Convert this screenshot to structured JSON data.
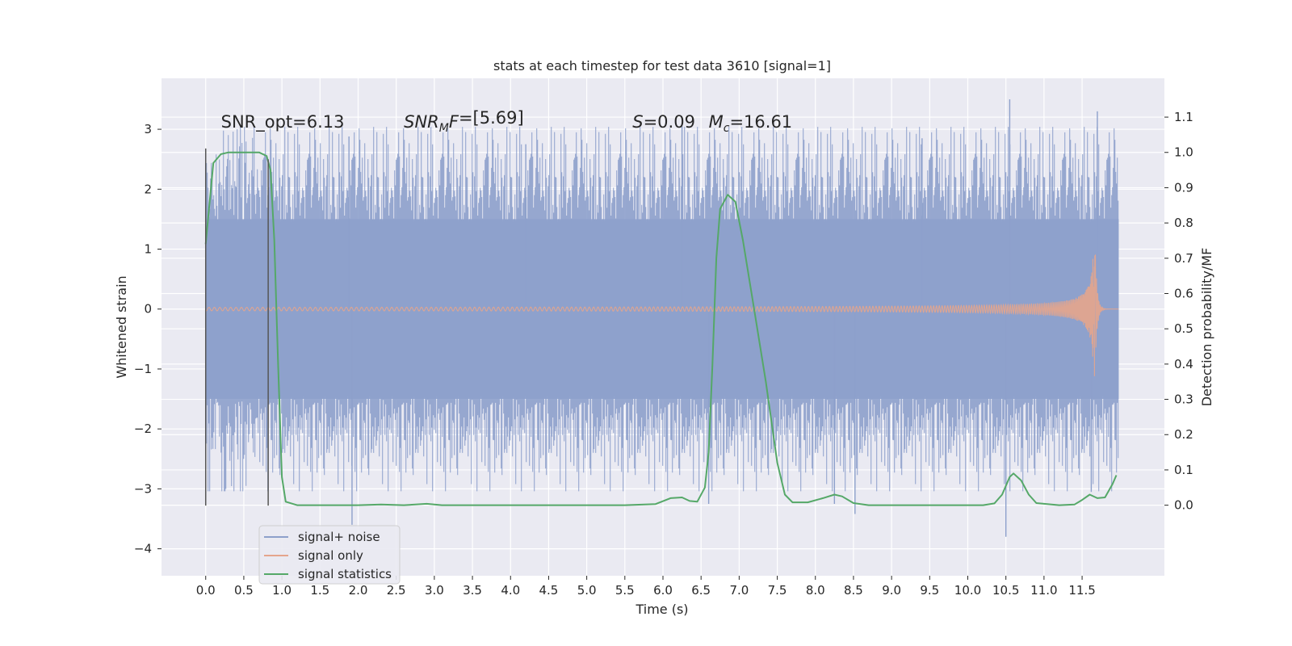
{
  "figure": {
    "title": "stats at each timestep for test data 3610 [signal=1]",
    "background": "#ffffff",
    "plot_background": "#eaeaf2",
    "grid_color": "#ffffff"
  },
  "chart_data": {
    "type": "line",
    "title": "stats at each timestep for test data 3610 [signal=1]",
    "xlabel": "Time (s)",
    "ylabel_left": "Whitened strain",
    "ylabel_right": "Detection probability/MF",
    "xlim": [
      -0.58,
      12.58
    ],
    "ylim_left": [
      -4.45,
      3.85
    ],
    "ylim_right": [
      -0.2,
      1.21
    ],
    "x_ticks": [
      0.0,
      0.5,
      1.0,
      1.5,
      2.0,
      2.5,
      3.0,
      3.5,
      4.0,
      4.5,
      5.0,
      5.5,
      6.0,
      6.5,
      7.0,
      7.5,
      8.0,
      8.5,
      9.0,
      9.5,
      10.0,
      10.5,
      11.0,
      11.5
    ],
    "x_tick_labels": [
      "0.0",
      "0.5",
      "1.0",
      "1.5",
      "2.0",
      "2.5",
      "3.0",
      "3.5",
      "4.0",
      "4.5",
      "5.0",
      "5.5",
      "6.0",
      "6.5",
      "7.0",
      "7.5",
      "8.0",
      "8.5",
      "9.0",
      "9.5",
      "10.0",
      "10.5",
      "11.0",
      "11.5"
    ],
    "y_left_ticks": [
      -4,
      -3,
      -2,
      -1,
      0,
      1,
      2,
      3
    ],
    "y_left_tick_labels": [
      "−4",
      "−3",
      "−2",
      "−1",
      "0",
      "1",
      "2",
      "3"
    ],
    "y_right_ticks": [
      0.0,
      0.1,
      0.2,
      0.3,
      0.4,
      0.5,
      0.6,
      0.7,
      0.8,
      0.9,
      1.0,
      1.1
    ],
    "y_right_tick_labels": [
      "0.0",
      "0.1",
      "0.2",
      "0.3",
      "0.4",
      "0.5",
      "0.6",
      "0.7",
      "0.8",
      "0.9",
      "1.0",
      "1.1"
    ],
    "grid": true,
    "legend_position": "lower-left",
    "legend": [
      {
        "label": "signal+ noise",
        "color": "#8da0cb"
      },
      {
        "label": "signal only",
        "color": "#e5a58c"
      },
      {
        "label": "signal statistics",
        "color": "#55a868"
      }
    ],
    "annotations": [
      {
        "parts": [
          {
            "t": "SNR_opt=6.13",
            "i": false
          }
        ],
        "x": 0.2
      },
      {
        "parts": [
          {
            "t": "SNR",
            "i": true
          },
          {
            "t": "M",
            "i": true,
            "sub": true
          },
          {
            "t": "F",
            "i": true
          },
          {
            "t": "=[5.69]",
            "i": false
          }
        ],
        "x": 2.6
      },
      {
        "parts": [
          {
            "t": "S",
            "i": true
          },
          {
            "t": "=0.09",
            "i": false
          }
        ],
        "x": 5.6
      },
      {
        "parts": [
          {
            "t": "M",
            "i": true
          },
          {
            "t": "c",
            "i": true,
            "sub": true
          },
          {
            "t": "=16.61",
            "i": false
          }
        ],
        "x": 6.6
      }
    ],
    "annotation_y": 3.12,
    "vertical_markers": [
      {
        "x": 0.0,
        "y_top": 2.68,
        "y_bottom": -3.28
      },
      {
        "x": 0.82,
        "y_top": 2.5,
        "y_bottom": -3.28
      }
    ],
    "series": [
      {
        "name": "signal+ noise",
        "axis": "left",
        "style": "noise",
        "color": "#8da0cb",
        "x_range": [
          0.0,
          11.98
        ],
        "band": [
          -1.5,
          1.5
        ],
        "max_excursion": 3.8,
        "peaks": [
          {
            "x": 1.88,
            "y": 2.88
          },
          {
            "x": 1.92,
            "y": -3.6
          },
          {
            "x": 6.25,
            "y": 3.05
          },
          {
            "x": 6.6,
            "y": -3.25
          },
          {
            "x": 8.25,
            "y": -3.25
          },
          {
            "x": 8.52,
            "y": -3.42
          },
          {
            "x": 10.55,
            "y": 3.5
          },
          {
            "x": 10.5,
            "y": -3.8
          },
          {
            "x": 11.7,
            "y": 3.3
          },
          {
            "x": 11.62,
            "y": -3.05
          },
          {
            "x": 4.2,
            "y": 2.75
          },
          {
            "x": 9.4,
            "y": 2.85
          }
        ]
      },
      {
        "name": "signal only",
        "axis": "left",
        "style": "chirp",
        "color": "#e5a58c",
        "x_range": [
          0.0,
          11.98
        ],
        "merger_time": 11.67,
        "peak_amplitude": 1.12,
        "baseline_amplitude": 0.02
      },
      {
        "name": "signal statistics",
        "axis": "right",
        "style": "line",
        "color": "#55a868",
        "points": [
          [
            0.0,
            0.74
          ],
          [
            0.1,
            0.97
          ],
          [
            0.2,
            0.995
          ],
          [
            0.3,
            1.0
          ],
          [
            0.7,
            1.0
          ],
          [
            0.8,
            0.99
          ],
          [
            0.85,
            0.95
          ],
          [
            0.9,
            0.75
          ],
          [
            0.95,
            0.4
          ],
          [
            1.0,
            0.08
          ],
          [
            1.05,
            0.01
          ],
          [
            1.2,
            0.0
          ],
          [
            2.0,
            0.0
          ],
          [
            2.3,
            0.002
          ],
          [
            2.6,
            0.0
          ],
          [
            2.9,
            0.004
          ],
          [
            3.1,
            0.0
          ],
          [
            5.5,
            0.0
          ],
          [
            5.9,
            0.003
          ],
          [
            6.1,
            0.02
          ],
          [
            6.25,
            0.022
          ],
          [
            6.35,
            0.012
          ],
          [
            6.45,
            0.01
          ],
          [
            6.55,
            0.05
          ],
          [
            6.6,
            0.15
          ],
          [
            6.65,
            0.4
          ],
          [
            6.7,
            0.7
          ],
          [
            6.75,
            0.84
          ],
          [
            6.85,
            0.88
          ],
          [
            6.95,
            0.86
          ],
          [
            7.05,
            0.75
          ],
          [
            7.2,
            0.55
          ],
          [
            7.35,
            0.35
          ],
          [
            7.5,
            0.12
          ],
          [
            7.6,
            0.03
          ],
          [
            7.7,
            0.008
          ],
          [
            7.9,
            0.008
          ],
          [
            8.1,
            0.02
          ],
          [
            8.25,
            0.03
          ],
          [
            8.35,
            0.025
          ],
          [
            8.5,
            0.006
          ],
          [
            8.7,
            0.0
          ],
          [
            9.5,
            0.0
          ],
          [
            10.2,
            0.0
          ],
          [
            10.35,
            0.005
          ],
          [
            10.45,
            0.03
          ],
          [
            10.55,
            0.08
          ],
          [
            10.6,
            0.09
          ],
          [
            10.7,
            0.07
          ],
          [
            10.8,
            0.03
          ],
          [
            10.9,
            0.006
          ],
          [
            11.2,
            0.0
          ],
          [
            11.4,
            0.002
          ],
          [
            11.5,
            0.015
          ],
          [
            11.6,
            0.03
          ],
          [
            11.7,
            0.02
          ],
          [
            11.8,
            0.022
          ],
          [
            11.9,
            0.06
          ],
          [
            11.95,
            0.085
          ]
        ]
      }
    ]
  }
}
